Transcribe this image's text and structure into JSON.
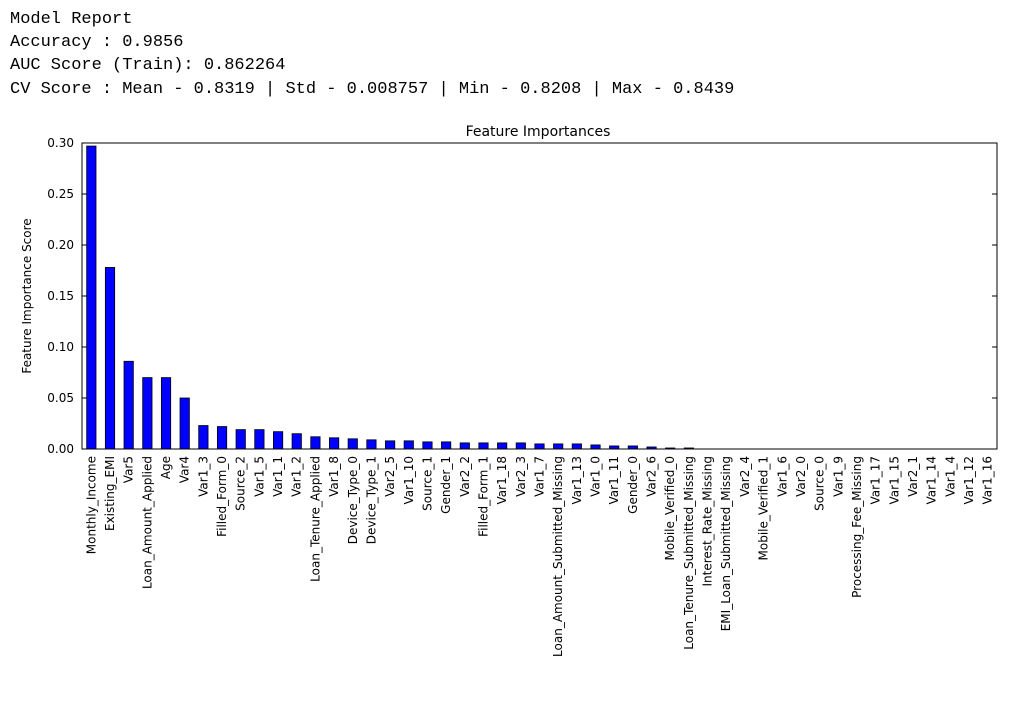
{
  "report": {
    "lines": [
      "Model Report",
      "Accuracy : 0.9856",
      "AUC Score (Train): 0.862264",
      "CV Score : Mean - 0.8319 | Std - 0.008757 | Min - 0.8208 | Max - 0.8439"
    ]
  },
  "chart_data": {
    "type": "bar",
    "title": "Feature Importances",
    "y_label": "Feature Importance Score",
    "color": "#0000ff",
    "categories": [
      "Monthly_Income",
      "Existing_EMI",
      "Var5",
      "Loan_Amount_Applied",
      "Age",
      "Var4",
      "Var1_3",
      "Filled_Form_0",
      "Source_2",
      "Var1_5",
      "Var1_1",
      "Var1_2",
      "Loan_Tenure_Applied",
      "Var1_8",
      "Device_Type_0",
      "Device_Type_1",
      "Var2_5",
      "Var1_10",
      "Source_1",
      "Gender_1",
      "Var2_2",
      "Filled_Form_1",
      "Var1_18",
      "Var2_3",
      "Var1_7",
      "Loan_Amount_Submitted_Missing",
      "Var1_13",
      "Var1_0",
      "Var1_11",
      "Gender_0",
      "Var2_6",
      "Mobile_Verified_0",
      "Loan_Tenure_Submitted_Missing",
      "Interest_Rate_Missing",
      "EMI_Loan_Submitted_Missing",
      "Var2_4",
      "Mobile_Verified_1",
      "Var1_6",
      "Var2_0",
      "Source_0",
      "Var1_9",
      "Processing_Fee_Missing",
      "Var1_17",
      "Var1_15",
      "Var2_1",
      "Var1_14",
      "Var1_4",
      "Var1_12",
      "Var1_16"
    ],
    "values": [
      0.297,
      0.178,
      0.086,
      0.07,
      0.07,
      0.05,
      0.023,
      0.022,
      0.019,
      0.019,
      0.017,
      0.015,
      0.012,
      0.011,
      0.01,
      0.009,
      0.008,
      0.008,
      0.007,
      0.007,
      0.006,
      0.006,
      0.006,
      0.006,
      0.005,
      0.005,
      0.005,
      0.004,
      0.003,
      0.003,
      0.002,
      0.001,
      0.001,
      0,
      0,
      0,
      0,
      0,
      0,
      0,
      0,
      0,
      0,
      0,
      0,
      0,
      0,
      0,
      0
    ],
    "ylim": [
      0,
      0.3
    ],
    "yticks": [
      {
        "value": 0,
        "label": "0.00"
      },
      {
        "value": 0.05,
        "label": "0.05"
      },
      {
        "value": 0.1,
        "label": "0.10"
      },
      {
        "value": 0.15,
        "label": "0.15"
      },
      {
        "value": 0.2,
        "label": "0.20"
      },
      {
        "value": 0.25,
        "label": "0.25"
      },
      {
        "value": 0.3,
        "label": "0.30"
      }
    ]
  }
}
